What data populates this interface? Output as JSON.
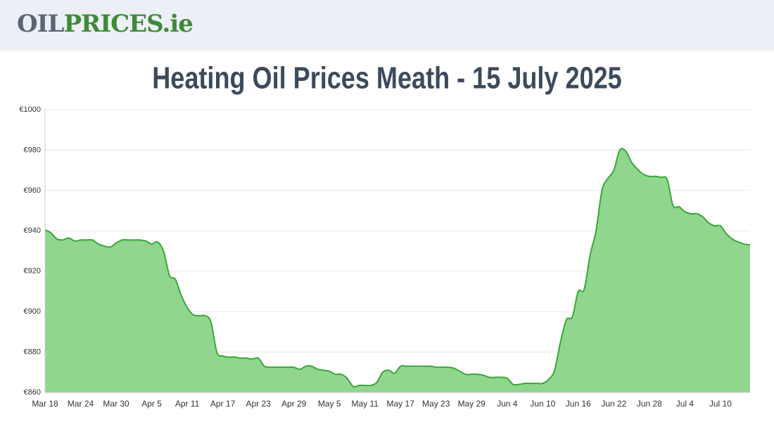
{
  "header": {
    "logo_left": "OIL",
    "logo_right": "PRICES.ie"
  },
  "chart_data": {
    "type": "area",
    "title": "Heating Oil Prices Meath - 15 July 2025",
    "categories": [
      "Mar 18",
      null,
      null,
      null,
      null,
      null,
      "Mar 24",
      null,
      null,
      null,
      null,
      null,
      "Mar 30",
      null,
      null,
      null,
      null,
      null,
      "Apr 5",
      null,
      null,
      null,
      null,
      null,
      "Apr 11",
      null,
      null,
      null,
      null,
      null,
      "Apr 17",
      null,
      null,
      null,
      null,
      null,
      "Apr 23",
      null,
      null,
      null,
      null,
      null,
      "Apr 29",
      null,
      null,
      null,
      null,
      null,
      "May 5",
      null,
      null,
      null,
      null,
      null,
      "May 11",
      null,
      null,
      null,
      null,
      null,
      "May 17",
      null,
      null,
      null,
      null,
      null,
      "May 23",
      null,
      null,
      null,
      null,
      null,
      "May 29",
      null,
      null,
      null,
      null,
      null,
      "Jun 4",
      null,
      null,
      null,
      null,
      null,
      "Jun 10",
      null,
      null,
      null,
      null,
      null,
      "Jun 16",
      null,
      null,
      null,
      null,
      null,
      "Jun 22",
      null,
      null,
      null,
      null,
      null,
      "Jun 28",
      null,
      null,
      null,
      null,
      null,
      "Jul 4",
      null,
      null,
      null,
      null,
      null,
      "Jul 10",
      null,
      null,
      null,
      null,
      null
    ],
    "values": [
      940.5,
      939,
      936,
      935.5,
      936.5,
      935,
      935.5,
      935.5,
      935.5,
      933.5,
      932.5,
      932,
      934,
      935.5,
      935.5,
      935.5,
      935.5,
      935,
      933.5,
      934.5,
      930,
      918,
      916,
      908,
      902,
      898.5,
      898,
      898,
      895,
      880,
      878,
      877.5,
      877.5,
      877,
      877,
      876.5,
      877,
      873,
      872.5,
      872.5,
      872.5,
      872.5,
      872.5,
      871.5,
      873,
      873,
      871.5,
      871,
      870.5,
      869,
      869,
      867,
      863,
      863.5,
      863.5,
      863.5,
      865,
      870,
      871,
      869.5,
      873,
      873,
      873,
      873,
      873,
      873,
      872.5,
      872.5,
      872.5,
      872,
      870.5,
      869,
      869,
      869,
      868.5,
      867.5,
      867.5,
      867.5,
      867,
      864,
      864,
      864.5,
      864.5,
      864.5,
      864.5,
      866.5,
      871,
      885,
      896,
      897.5,
      910,
      911,
      928,
      940,
      960,
      966,
      970,
      980,
      979.5,
      974,
      970.5,
      968,
      967,
      967,
      966.5,
      965.5,
      952.5,
      952,
      949.5,
      948.5,
      948.5,
      947,
      944,
      942.5,
      942.5,
      938.5,
      936,
      934.5,
      933.5,
      933
    ],
    "color": "#3aa63a",
    "fill": "#90d68e",
    "ylim": [
      860,
      1000
    ],
    "yticks": [
      {
        "value": 860,
        "label": "€860"
      },
      {
        "value": 880,
        "label": "€880"
      },
      {
        "value": 900,
        "label": "€900"
      },
      {
        "value": 920,
        "label": "€920"
      },
      {
        "value": 940,
        "label": "€940"
      },
      {
        "value": 960,
        "label": "€960"
      },
      {
        "value": 980,
        "label": "€980"
      },
      {
        "value": 1000,
        "label": "€1000"
      }
    ],
    "grid": true
  }
}
